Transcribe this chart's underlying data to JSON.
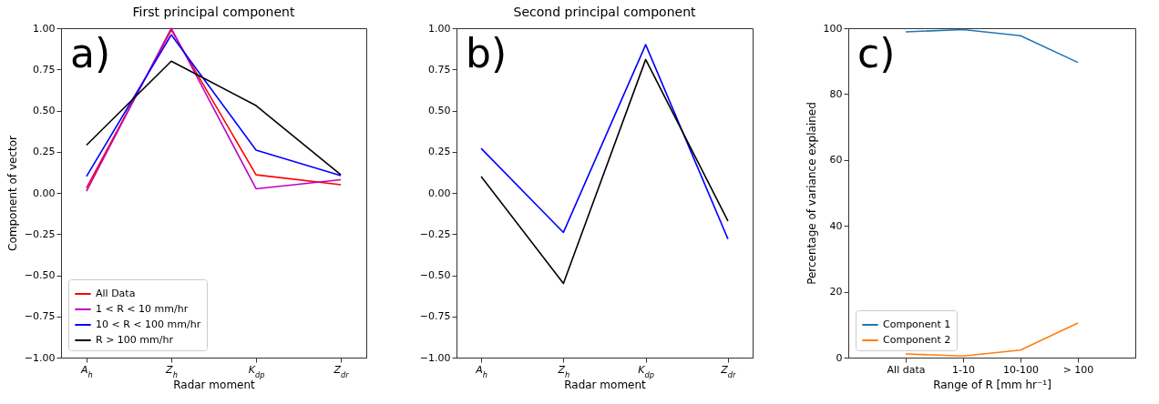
{
  "chart_data": [
    {
      "type": "line",
      "title": "First principal component",
      "xlabel": "Radar moment",
      "ylabel": "Component of vector",
      "categories": [
        "A$_{h}$",
        "Z$_{h}$",
        "K$_{dp}$",
        "Z$_{dr}$"
      ],
      "series": [
        {
          "name": "All Data",
          "color": "#ff0000",
          "values": [
            0.03,
            0.99,
            0.11,
            0.05
          ]
        },
        {
          "name": "1 < R < 10 mm/hr",
          "color": "#bf00bf",
          "values": [
            0.01,
            1.0,
            0.025,
            0.08
          ]
        },
        {
          "name": "10 < R < 100 mm/hr",
          "color": "#0000ff",
          "values": [
            0.1,
            0.96,
            0.26,
            0.105
          ]
        },
        {
          "name": "R > 100 mm/hr",
          "color": "#000000",
          "values": [
            0.29,
            0.8,
            0.53,
            0.11
          ]
        }
      ],
      "ylim": [
        -1,
        1
      ],
      "yticks": [
        {
          "value": -1,
          "label": "−1.00"
        },
        {
          "value": -0.75,
          "label": "−0.75"
        },
        {
          "value": -0.5,
          "label": "−0.50"
        },
        {
          "value": -0.25,
          "label": "−0.25"
        },
        {
          "value": 0,
          "label": "0.00"
        },
        {
          "value": 0.25,
          "label": "0.25"
        },
        {
          "value": 0.5,
          "label": "0.50"
        },
        {
          "value": 0.75,
          "label": "0.75"
        },
        {
          "value": 1,
          "label": "1.00"
        }
      ],
      "annotations": [
        "a)"
      ],
      "legend": "bottom left",
      "grid": false,
      "marker": "none",
      "line_style": "solid"
    },
    {
      "type": "line",
      "title": "Second principal component",
      "xlabel": "Radar moment",
      "categories": [
        "A$_{h}$",
        "Z$_{h}$",
        "K$_{dp}$",
        "Z$_{dr}$"
      ],
      "series": [
        {
          "color": "#0000ff",
          "values": [
            0.27,
            -0.24,
            0.9,
            -0.28
          ]
        },
        {
          "color": "#000000",
          "values": [
            0.1,
            -0.55,
            0.81,
            -0.17
          ]
        }
      ],
      "ylim": [
        -1,
        1
      ],
      "yticks": [
        {
          "value": -1,
          "label": "−1.00"
        },
        {
          "value": -0.75,
          "label": "−0.75"
        },
        {
          "value": -0.5,
          "label": "−0.50"
        },
        {
          "value": -0.25,
          "label": "−0.25"
        },
        {
          "value": 0,
          "label": "0.00"
        },
        {
          "value": 0.25,
          "label": "0.25"
        },
        {
          "value": 0.5,
          "label": "0.50"
        },
        {
          "value": 0.75,
          "label": "0.75"
        },
        {
          "value": 1,
          "label": "1.00"
        }
      ],
      "annotations": [
        "b)"
      ],
      "legend": false,
      "grid": false,
      "marker": "none",
      "line_style": "solid"
    },
    {
      "type": "line",
      "xlabel": "Range of R [mm hr⁻¹]",
      "ylabel": "Percentage of variance explained",
      "categories": [
        "All data",
        "1-10",
        "10-100",
        "> 100"
      ],
      "series": [
        {
          "name": "Component 1",
          "color": "#1f77b4",
          "values": [
            98.9,
            99.6,
            97.7,
            89.6
          ]
        },
        {
          "name": "Component 2",
          "color": "#ff7f0e",
          "values": [
            1.1,
            0.5,
            2.3,
            10.5
          ]
        }
      ],
      "ylim": [
        0,
        100
      ],
      "yticks": [
        0,
        20,
        40,
        60,
        80,
        100
      ],
      "annotations": [
        "c)"
      ],
      "legend": "bottom left",
      "grid": false,
      "marker": "none",
      "line_style": "solid"
    }
  ]
}
